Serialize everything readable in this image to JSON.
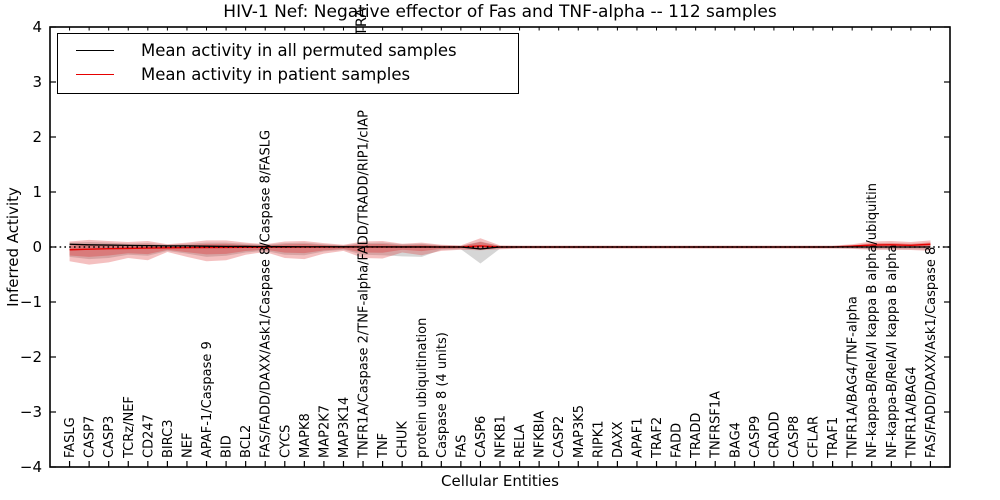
{
  "title": "HIV-1 Nef: Negative effector of Fas and TNF-alpha -- 112 samples",
  "axes": {
    "x_label": "Cellular Entities",
    "y_label": "Inferred Activity"
  },
  "legend": {
    "items": [
      {
        "label": "Mean activity in all permuted samples",
        "color": "#000000"
      },
      {
        "label": "Mean activity in patient samples",
        "color": "#e60000"
      }
    ]
  },
  "overflow_fragment": "TRA",
  "chart_data": {
    "type": "line",
    "title": "HIV-1 Nef: Negative effector of Fas and TNF-alpha -- 112 samples",
    "xlabel": "Cellular Entities",
    "ylabel": "Inferred Activity",
    "ylim": [
      -4,
      4
    ],
    "yticks": [
      -4,
      -3,
      -2,
      -1,
      0,
      1,
      2,
      3,
      4
    ],
    "grid": false,
    "legend_position": "upper left",
    "zero_line": {
      "style": "dotted",
      "color": "#000000",
      "y": 0
    },
    "categories": [
      "FASLG",
      "CASP7",
      "CASP3",
      "TCRz/NEF",
      "CD247",
      "BIRC3",
      "NEF",
      "APAF-1/Caspase 9",
      "BID",
      "BCL2",
      "FAS/FADD/DAXX/Ask1/Caspase 8/Caspase 8/FASLG",
      "CYCS",
      "MAPK8",
      "MAP2K7",
      "MAP3K14",
      "TNFR1A/Caspase 2/TNF-alpha/FADD/TRADD/RIP1/cIAP",
      "TNF",
      "CHUK",
      "protein ubiquitination",
      "Caspase 8 (4 units)",
      "FAS",
      "CASP6",
      "NFKB1",
      "RELA",
      "NFKBIA",
      "CASP2",
      "MAP3K5",
      "RIPK1",
      "DAXX",
      "APAF1",
      "TRAF2",
      "FADD",
      "TRADD",
      "TNFRSF1A",
      "BAG4",
      "CASP9",
      "CRADD",
      "CASP8",
      "CFLAR",
      "TRAF1",
      "TNFR1A/BAG4/TNF-alpha",
      "NF-kappa-B/RelA/I kappa B alpha/ubiquitin",
      "NF-kappa-B/RelA/I kappa B alpha",
      "TNFR1A/BAG4",
      "FAS/FADD/DAXX/Ask1/Caspase 8"
    ],
    "series": [
      {
        "name": "Mean activity in all permuted samples",
        "color": "#000000",
        "values": [
          0.05,
          0.04,
          0.035,
          0.03,
          0.025,
          0.02,
          0.02,
          0.015,
          0.012,
          0.01,
          0.008,
          0.006,
          0.005,
          0.004,
          0.003,
          0.002,
          0.002,
          0.001,
          0.001,
          0,
          0,
          -0.035,
          0,
          0,
          0,
          0,
          0,
          0,
          0,
          0,
          0,
          0,
          0,
          0,
          0,
          0,
          0,
          0,
          0,
          0,
          0,
          0,
          0,
          0,
          0
        ]
      },
      {
        "name": "Mean activity in patient samples",
        "color": "#e60000",
        "values": [
          -0.05,
          -0.04,
          -0.03,
          -0.025,
          -0.02,
          -0.015,
          -0.012,
          -0.01,
          -0.008,
          -0.005,
          -0.004,
          -0.003,
          -0.002,
          -0.002,
          -0.001,
          -0.001,
          0,
          0,
          0,
          0,
          0,
          0.02,
          0,
          0,
          0,
          0,
          0,
          0,
          0,
          0,
          0,
          0,
          0,
          0,
          0,
          0,
          0,
          0,
          0,
          0,
          0.015,
          0.035,
          0.04,
          0.03,
          0.05
        ]
      }
    ],
    "bands": [
      {
        "name": "permuted range",
        "color": "#808080",
        "opacity": 0.32,
        "upper": [
          0.08,
          0.09,
          0.08,
          0.06,
          0.07,
          0.04,
          0.06,
          0.08,
          0.08,
          0.06,
          0.04,
          0.07,
          0.08,
          0.05,
          0.03,
          0.07,
          0.08,
          0.05,
          0.06,
          0.03,
          0.02,
          0.1,
          0.02,
          0.02,
          0.02,
          0.02,
          0.02,
          0.02,
          0.02,
          0.02,
          0.02,
          0.02,
          0.02,
          0.02,
          0.02,
          0.02,
          0.02,
          0.02,
          0.02,
          0.02,
          0.03,
          0.05,
          0.05,
          0.04,
          0.05
        ],
        "lower": [
          -0.18,
          -0.22,
          -0.2,
          -0.14,
          -0.16,
          -0.07,
          -0.12,
          -0.18,
          -0.16,
          -0.1,
          -0.07,
          -0.14,
          -0.15,
          -0.08,
          -0.05,
          -0.14,
          -0.15,
          -0.17,
          -0.18,
          -0.05,
          -0.04,
          -0.3,
          -0.03,
          -0.02,
          -0.02,
          -0.02,
          -0.02,
          -0.02,
          -0.02,
          -0.02,
          -0.02,
          -0.02,
          -0.02,
          -0.02,
          -0.02,
          -0.02,
          -0.02,
          -0.02,
          -0.02,
          -0.02,
          -0.025,
          -0.04,
          -0.04,
          -0.04,
          -0.05
        ]
      },
      {
        "name": "patient range",
        "color": "#dc3030",
        "opacity": 0.3,
        "upper": [
          0.1,
          0.13,
          0.11,
          0.09,
          0.11,
          0.05,
          0.08,
          0.12,
          0.12,
          0.08,
          0.05,
          0.1,
          0.11,
          0.07,
          0.04,
          0.1,
          0.11,
          0.06,
          0.08,
          0.04,
          0.03,
          0.16,
          0.03,
          0.025,
          0.025,
          0.025,
          0.025,
          0.025,
          0.025,
          0.025,
          0.025,
          0.025,
          0.025,
          0.025,
          0.025,
          0.025,
          0.025,
          0.025,
          0.025,
          0.025,
          0.05,
          0.1,
          0.11,
          0.09,
          0.12
        ],
        "lower": [
          -0.26,
          -0.32,
          -0.28,
          -0.2,
          -0.24,
          -0.09,
          -0.18,
          -0.26,
          -0.24,
          -0.14,
          -0.09,
          -0.2,
          -0.22,
          -0.12,
          -0.07,
          -0.2,
          -0.21,
          -0.1,
          -0.15,
          -0.07,
          -0.05,
          -0.06,
          -0.04,
          -0.03,
          -0.03,
          -0.03,
          -0.03,
          -0.03,
          -0.03,
          -0.03,
          -0.03,
          -0.03,
          -0.03,
          -0.03,
          -0.03,
          -0.03,
          -0.03,
          -0.03,
          -0.03,
          -0.03,
          -0.035,
          -0.05,
          -0.05,
          -0.055,
          -0.07
        ]
      }
    ],
    "inner_band_scale": 0.5
  }
}
